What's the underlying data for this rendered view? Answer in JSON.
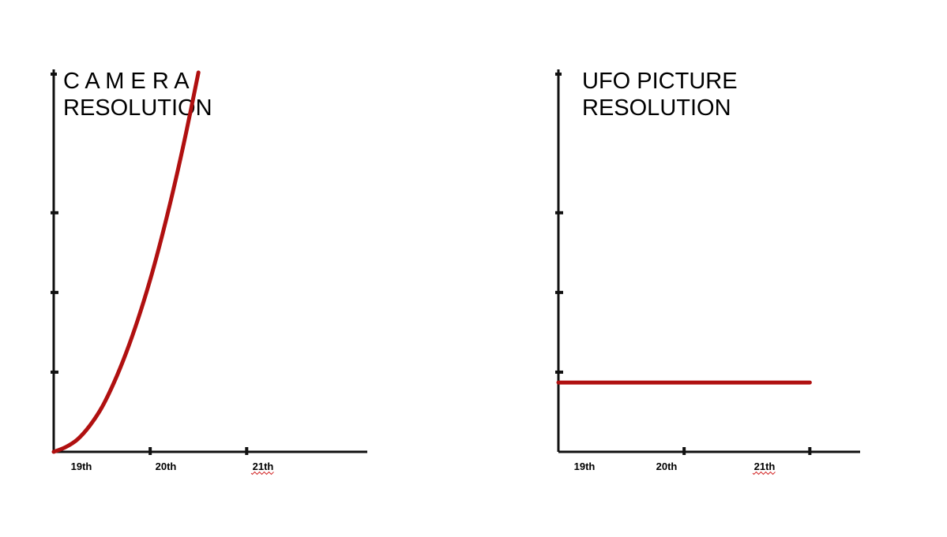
{
  "colors": {
    "series": "#b01010",
    "axis": "#111111",
    "spellcheck_underline": "#d43030"
  },
  "chart_data": [
    {
      "type": "line",
      "title_lines": [
        "C A M E R A",
        "RESOLUTION"
      ],
      "categories": [
        "19th",
        "20th",
        "21th"
      ],
      "x": [
        0,
        0.25,
        0.5,
        0.75,
        1.0,
        1.25,
        1.5,
        1.75,
        2.0,
        2.25,
        2.5,
        2.75,
        3.0
      ],
      "series": [
        {
          "values": [
            0,
            0.06,
            0.16,
            0.33,
            0.56,
            0.87,
            1.24,
            1.67,
            2.16,
            2.72,
            3.34,
            4.02,
            4.76
          ]
        }
      ],
      "xlim": [
        0,
        6.5
      ],
      "ylim": [
        0,
        4.7
      ],
      "y_ticks": [
        1,
        2,
        3
      ],
      "x_tick_marks": [
        2,
        4
      ],
      "grid": false
    },
    {
      "type": "line",
      "title_lines": [
        "UFO PICTURE",
        "RESOLUTION"
      ],
      "categories": [
        "19th",
        "20th",
        "21th"
      ],
      "x": [
        0,
        5
      ],
      "series": [
        {
          "values": [
            0.87,
            0.87
          ]
        }
      ],
      "xlim": [
        0,
        6
      ],
      "ylim": [
        0,
        4.7
      ],
      "y_ticks": [
        1,
        2,
        3
      ],
      "x_tick_marks": [
        2.5,
        5
      ],
      "grid": false
    }
  ]
}
